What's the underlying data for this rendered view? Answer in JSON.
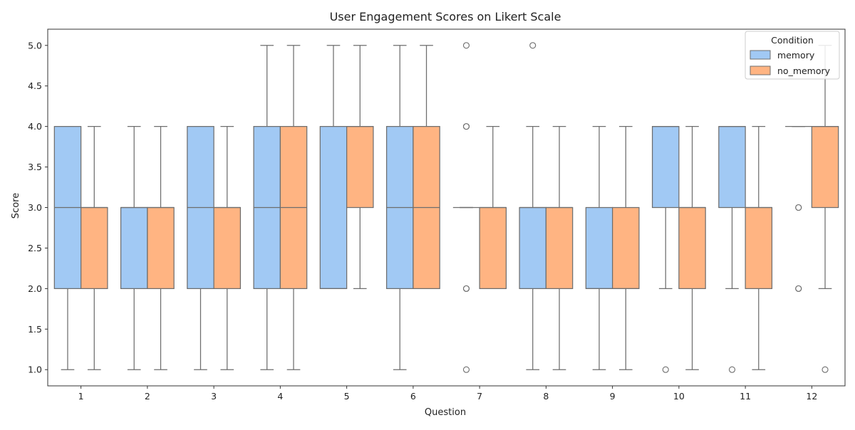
{
  "chart_data": {
    "type": "box",
    "title": "User Engagement Scores on Likert Scale",
    "xlabel": "Question",
    "ylabel": "Score",
    "ylim": [
      0.8,
      5.2
    ],
    "yticks": [
      1.0,
      1.5,
      2.0,
      2.5,
      3.0,
      3.5,
      4.0,
      4.5,
      5.0
    ],
    "ytick_labels": [
      "1.0",
      "1.5",
      "2.0",
      "2.5",
      "3.0",
      "3.5",
      "4.0",
      "4.5",
      "5.0"
    ],
    "categories": [
      "1",
      "2",
      "3",
      "4",
      "5",
      "6",
      "7",
      "8",
      "9",
      "10",
      "11",
      "12"
    ],
    "grid": false,
    "legend": {
      "title": "Condition",
      "placement": "top-right",
      "entries": [
        "memory",
        "no_memory"
      ]
    },
    "colors": {
      "memory": "#a1c9f4",
      "no_memory": "#ffb482",
      "line": "#6e6e6e"
    },
    "series": [
      {
        "name": "memory",
        "boxes": [
          {
            "q": "1",
            "whislo": 1,
            "q1": 2,
            "med": 3,
            "q3": 4,
            "whishi": 4,
            "fliers": []
          },
          {
            "q": "2",
            "whislo": 1,
            "q1": 2,
            "med": 3,
            "q3": 3,
            "whishi": 4,
            "fliers": []
          },
          {
            "q": "3",
            "whislo": 1,
            "q1": 2,
            "med": 3,
            "q3": 4,
            "whishi": 4,
            "fliers": []
          },
          {
            "q": "4",
            "whislo": 1,
            "q1": 2,
            "med": 3,
            "q3": 4,
            "whishi": 5,
            "fliers": []
          },
          {
            "q": "5",
            "whislo": 2,
            "q1": 2,
            "med": 2,
            "q3": 4,
            "whishi": 5,
            "fliers": []
          },
          {
            "q": "6",
            "whislo": 1,
            "q1": 2,
            "med": 3,
            "q3": 4,
            "whishi": 5,
            "fliers": []
          },
          {
            "q": "7",
            "whislo": 3,
            "q1": 3,
            "med": 3,
            "q3": 3,
            "whishi": 3,
            "fliers": [
              5,
              4,
              4,
              2,
              2,
              1
            ]
          },
          {
            "q": "8",
            "whislo": 1,
            "q1": 2,
            "med": 3,
            "q3": 3,
            "whishi": 4,
            "fliers": [
              5
            ]
          },
          {
            "q": "9",
            "whislo": 1,
            "q1": 2,
            "med": 2,
            "q3": 3,
            "whishi": 4,
            "fliers": []
          },
          {
            "q": "10",
            "whislo": 2,
            "q1": 3,
            "med": 4,
            "q3": 4,
            "whishi": 4,
            "fliers": [
              1
            ]
          },
          {
            "q": "11",
            "whislo": 2,
            "q1": 3,
            "med": 4,
            "q3": 4,
            "whishi": 4,
            "fliers": [
              1
            ]
          },
          {
            "q": "12",
            "whislo": 4,
            "q1": 4,
            "med": 4,
            "q3": 4,
            "whishi": 4,
            "fliers": [
              3,
              3,
              2,
              2
            ]
          }
        ]
      },
      {
        "name": "no_memory",
        "boxes": [
          {
            "q": "1",
            "whislo": 1,
            "q1": 2,
            "med": 3,
            "q3": 3,
            "whishi": 4,
            "fliers": []
          },
          {
            "q": "2",
            "whislo": 1,
            "q1": 2,
            "med": 3,
            "q3": 3,
            "whishi": 4,
            "fliers": []
          },
          {
            "q": "3",
            "whislo": 1,
            "q1": 2,
            "med": 3,
            "q3": 3,
            "whishi": 4,
            "fliers": []
          },
          {
            "q": "4",
            "whislo": 1,
            "q1": 2,
            "med": 3,
            "q3": 4,
            "whishi": 5,
            "fliers": []
          },
          {
            "q": "5",
            "whislo": 2,
            "q1": 3,
            "med": 4,
            "q3": 4,
            "whishi": 5,
            "fliers": []
          },
          {
            "q": "6",
            "whislo": 2,
            "q1": 2,
            "med": 3,
            "q3": 4,
            "whishi": 5,
            "fliers": []
          },
          {
            "q": "7",
            "whislo": 2,
            "q1": 2,
            "med": 3,
            "q3": 3,
            "whishi": 4,
            "fliers": []
          },
          {
            "q": "8",
            "whislo": 1,
            "q1": 2,
            "med": 3,
            "q3": 3,
            "whishi": 4,
            "fliers": []
          },
          {
            "q": "9",
            "whislo": 1,
            "q1": 2,
            "med": 2,
            "q3": 3,
            "whishi": 4,
            "fliers": []
          },
          {
            "q": "10",
            "whislo": 1,
            "q1": 2,
            "med": 3,
            "q3": 3,
            "whishi": 4,
            "fliers": []
          },
          {
            "q": "11",
            "whislo": 1,
            "q1": 2,
            "med": 3,
            "q3": 3,
            "whishi": 4,
            "fliers": []
          },
          {
            "q": "12",
            "whislo": 2,
            "q1": 3,
            "med": 4,
            "q3": 4,
            "whishi": 5,
            "fliers": [
              1
            ]
          }
        ]
      }
    ]
  }
}
